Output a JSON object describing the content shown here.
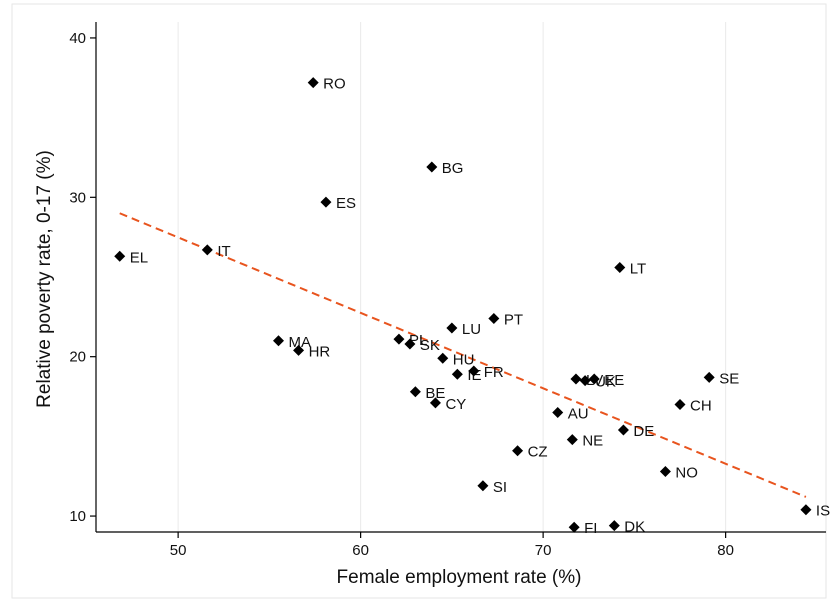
{
  "chart_data": {
    "type": "scatter",
    "title": "",
    "xlabel": "Female employment rate (%)",
    "ylabel": "Relative poverty rate, 0-17 (%)",
    "xlim": [
      45.5,
      85.5
    ],
    "ylim": [
      9,
      41
    ],
    "xticks": [
      50,
      60,
      70,
      80
    ],
    "yticks": [
      10,
      20,
      30,
      40
    ],
    "grid": "horizontal-none, vertical-light",
    "legend": "none",
    "marker_color": "#000000",
    "fit_line_color": "#e8541e",
    "points": [
      {
        "label": "RO",
        "x": 57.4,
        "y": 37.2
      },
      {
        "label": "BG",
        "x": 63.9,
        "y": 31.9
      },
      {
        "label": "ES",
        "x": 58.1,
        "y": 29.7
      },
      {
        "label": "IT",
        "x": 51.6,
        "y": 26.7
      },
      {
        "label": "EL",
        "x": 46.8,
        "y": 26.3
      },
      {
        "label": "LT",
        "x": 74.2,
        "y": 25.6
      },
      {
        "label": "PT",
        "x": 67.3,
        "y": 22.4
      },
      {
        "label": "LU",
        "x": 65.0,
        "y": 21.8
      },
      {
        "label": "MA",
        "x": 55.5,
        "y": 21.0
      },
      {
        "label": "PL",
        "x": 62.1,
        "y": 21.1
      },
      {
        "label": "SK",
        "x": 62.7,
        "y": 20.8
      },
      {
        "label": "HR",
        "x": 56.6,
        "y": 20.4
      },
      {
        "label": "HU",
        "x": 64.5,
        "y": 19.9
      },
      {
        "label": "IE",
        "x": 65.3,
        "y": 18.9
      },
      {
        "label": "FR",
        "x": 66.2,
        "y": 19.1
      },
      {
        "label": "LV",
        "x": 71.8,
        "y": 18.6
      },
      {
        "label": "UK",
        "x": 72.3,
        "y": 18.5
      },
      {
        "label": "EE",
        "x": 72.8,
        "y": 18.6
      },
      {
        "label": "SE",
        "x": 79.1,
        "y": 18.7
      },
      {
        "label": "BE",
        "x": 63.0,
        "y": 17.8
      },
      {
        "label": "CY",
        "x": 64.1,
        "y": 17.1
      },
      {
        "label": "CH",
        "x": 77.5,
        "y": 17.0
      },
      {
        "label": "AU",
        "x": 70.8,
        "y": 16.5
      },
      {
        "label": "DE",
        "x": 74.4,
        "y": 15.4
      },
      {
        "label": "NE",
        "x": 71.6,
        "y": 14.8
      },
      {
        "label": "CZ",
        "x": 68.6,
        "y": 14.1
      },
      {
        "label": "NO",
        "x": 76.7,
        "y": 12.8
      },
      {
        "label": "SI",
        "x": 66.7,
        "y": 11.9
      },
      {
        "label": "IS",
        "x": 84.4,
        "y": 10.4
      },
      {
        "label": "FI",
        "x": 71.7,
        "y": 9.3
      },
      {
        "label": "DK",
        "x": 73.9,
        "y": 9.4
      }
    ],
    "fit_line": {
      "x": [
        46.8,
        84.4
      ],
      "y": [
        29.0,
        11.2
      ],
      "style": "dashed"
    }
  }
}
